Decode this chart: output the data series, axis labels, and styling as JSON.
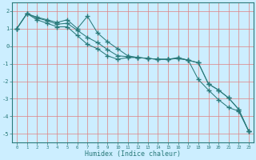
{
  "xlabel": "Humidex (Indice chaleur)",
  "background_color": "#cceeff",
  "grid_color": "#e08080",
  "line_color": "#2a7a7a",
  "xlim": [
    -0.5,
    23.5
  ],
  "ylim": [
    -5.5,
    2.5
  ],
  "xticks": [
    0,
    1,
    2,
    3,
    4,
    5,
    6,
    7,
    8,
    9,
    10,
    11,
    12,
    13,
    14,
    15,
    16,
    17,
    18,
    19,
    20,
    21,
    22,
    23
  ],
  "yticks": [
    -5,
    -4,
    -3,
    -2,
    -1,
    0,
    1,
    2
  ],
  "line1_x": [
    0,
    1,
    2,
    3,
    4,
    5,
    6,
    7,
    8,
    9,
    10,
    11,
    12,
    13,
    14,
    15,
    16,
    17,
    18,
    19,
    20,
    21,
    22,
    23
  ],
  "line1_y": [
    1.0,
    1.85,
    1.65,
    1.5,
    1.35,
    1.5,
    1.0,
    1.7,
    0.75,
    0.25,
    -0.15,
    -0.55,
    -0.65,
    -0.7,
    -0.75,
    -0.75,
    -0.65,
    -0.8,
    -1.9,
    -2.5,
    -3.05,
    -3.5,
    -3.7,
    -4.85
  ],
  "line2_x": [
    0,
    1,
    2,
    3,
    4,
    5,
    6,
    7,
    8,
    9,
    10,
    11,
    12,
    13,
    14,
    15,
    16,
    17,
    18,
    19,
    20,
    21,
    22,
    23
  ],
  "line2_y": [
    1.0,
    1.85,
    1.6,
    1.45,
    1.25,
    1.3,
    0.9,
    0.5,
    0.2,
    -0.2,
    -0.55,
    -0.6,
    -0.65,
    -0.7,
    -0.75,
    -0.75,
    -0.7,
    -0.8,
    -0.95,
    -2.15,
    -2.5,
    -2.95,
    -3.6,
    -4.85
  ],
  "line3_x": [
    0,
    1,
    2,
    3,
    4,
    5,
    6,
    7,
    8,
    9,
    10,
    11,
    12,
    13,
    14,
    15,
    16,
    17,
    18,
    19,
    20,
    21,
    22,
    23
  ],
  "line3_y": [
    1.0,
    1.85,
    1.5,
    1.3,
    1.1,
    1.1,
    0.6,
    0.1,
    -0.15,
    -0.55,
    -0.75,
    -0.65,
    -0.65,
    -0.7,
    -0.75,
    -0.75,
    -0.7,
    -0.8,
    -0.95,
    -2.15,
    -2.5,
    -2.95,
    -3.6,
    -4.85
  ]
}
